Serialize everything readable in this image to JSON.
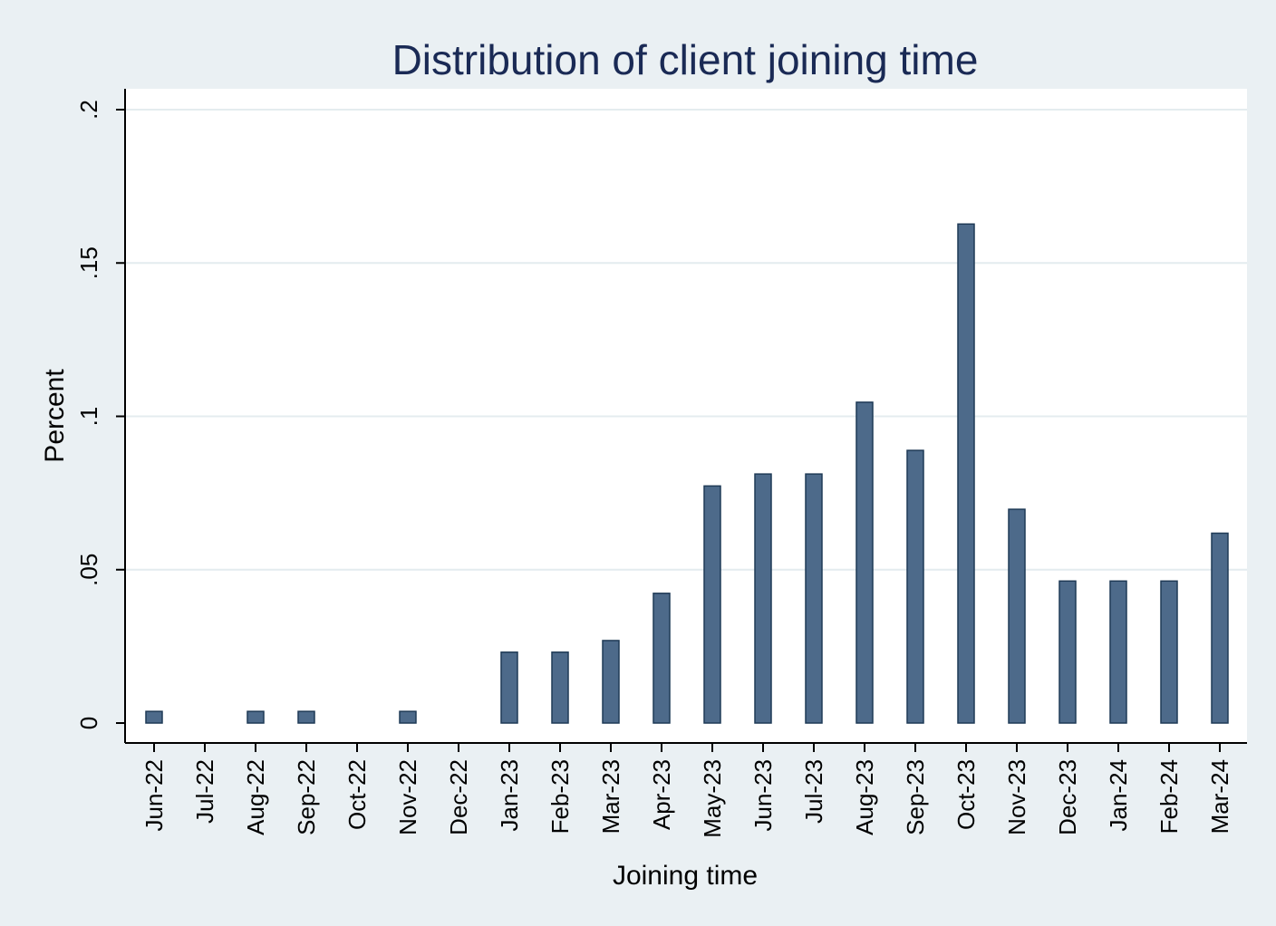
{
  "chart_data": {
    "type": "bar",
    "title": "Distribution of client joining time",
    "xlabel": "Joining time",
    "ylabel": "Percent",
    "categories": [
      "Jun-22",
      "Jul-22",
      "Aug-22",
      "Sep-22",
      "Oct-22",
      "Nov-22",
      "Dec-22",
      "Jan-23",
      "Feb-23",
      "Mar-23",
      "Apr-23",
      "May-23",
      "Jun-23",
      "Jul-23",
      "Aug-23",
      "Sep-23",
      "Oct-23",
      "Nov-23",
      "Dec-23",
      "Jan-24",
      "Feb-24",
      "Mar-24"
    ],
    "values": [
      0.0038,
      0,
      0.0038,
      0.0038,
      0,
      0.0038,
      0,
      0.0231,
      0.0231,
      0.0269,
      0.0423,
      0.0773,
      0.0812,
      0.0812,
      0.1046,
      0.0889,
      0.1627,
      0.0697,
      0.0463,
      0.0463,
      0.0463,
      0.0619
    ],
    "ylim": [
      0,
      0.2
    ],
    "yticks": [
      0,
      0.05,
      0.1,
      0.15,
      0.2
    ],
    "ytick_labels": [
      "0",
      ".05",
      ".1",
      ".15",
      ".2"
    ],
    "grid": true,
    "colors": {
      "background": "#eaf0f3",
      "plot_background": "#ffffff",
      "bar_fill": "#4d6a8a",
      "bar_stroke": "#1f3a56",
      "title": "#1a2a55",
      "gridline": "#e4ecef",
      "axis": "#000000"
    }
  }
}
